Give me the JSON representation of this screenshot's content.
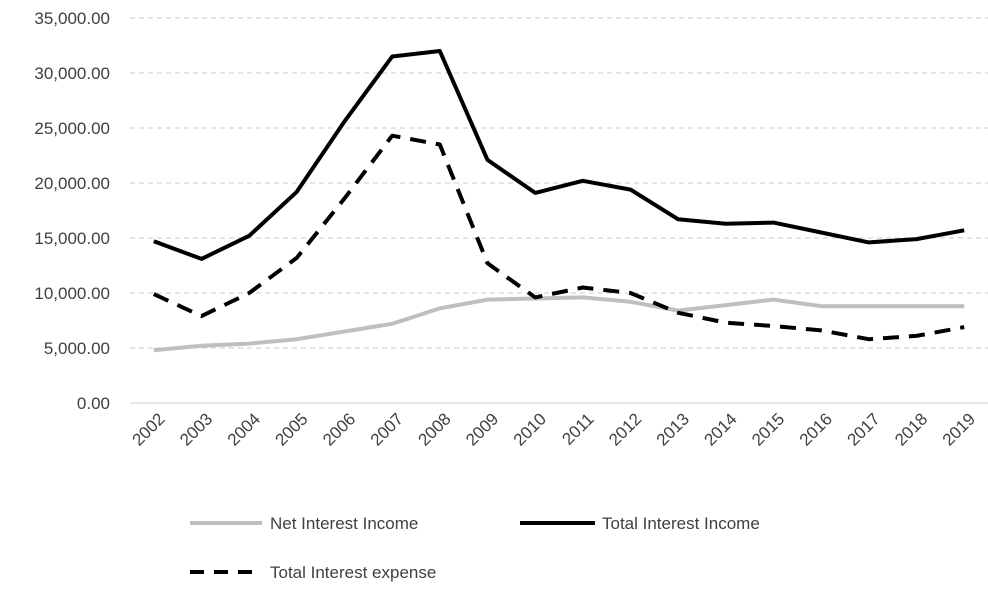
{
  "chart_data": {
    "type": "line",
    "categories": [
      "2002",
      "2003",
      "2004",
      "2005",
      "2006",
      "2007",
      "2008",
      "2009",
      "2010",
      "2011",
      "2012",
      "2013",
      "2014",
      "2015",
      "2016",
      "2017",
      "2018",
      "2019"
    ],
    "ylim": [
      0,
      35000
    ],
    "yticks": [
      0,
      5000,
      10000,
      15000,
      20000,
      25000,
      30000,
      35000
    ],
    "ytick_labels": [
      "0.00",
      "5,000.00",
      "10,000.00",
      "15,000.00",
      "20,000.00",
      "25,000.00",
      "30,000.00",
      "35,000.00"
    ],
    "grid": true,
    "legend_position": "bottom",
    "series": [
      {
        "name": "Net Interest Income",
        "color": "#bfbfbf",
        "style": "solid",
        "values": [
          4800,
          5200,
          5400,
          5800,
          6500,
          7200,
          8600,
          9400,
          9500,
          9600,
          9200,
          8400,
          8900,
          9400,
          8800,
          8800,
          8800,
          8800
        ]
      },
      {
        "name": "Total Interest Income",
        "color": "#000000",
        "style": "solid",
        "values": [
          14700,
          13100,
          15200,
          19200,
          25600,
          31500,
          32000,
          22100,
          19100,
          20200,
          19400,
          16700,
          16300,
          16400,
          15500,
          14600,
          14900,
          15700
        ]
      },
      {
        "name": "Total Interest expense",
        "color": "#000000",
        "style": "dashed",
        "values": [
          9900,
          7900,
          10000,
          13200,
          18600,
          24300,
          23500,
          12700,
          9600,
          10500,
          10000,
          8200,
          7300,
          7000,
          6600,
          5800,
          6100,
          6900
        ]
      }
    ]
  }
}
